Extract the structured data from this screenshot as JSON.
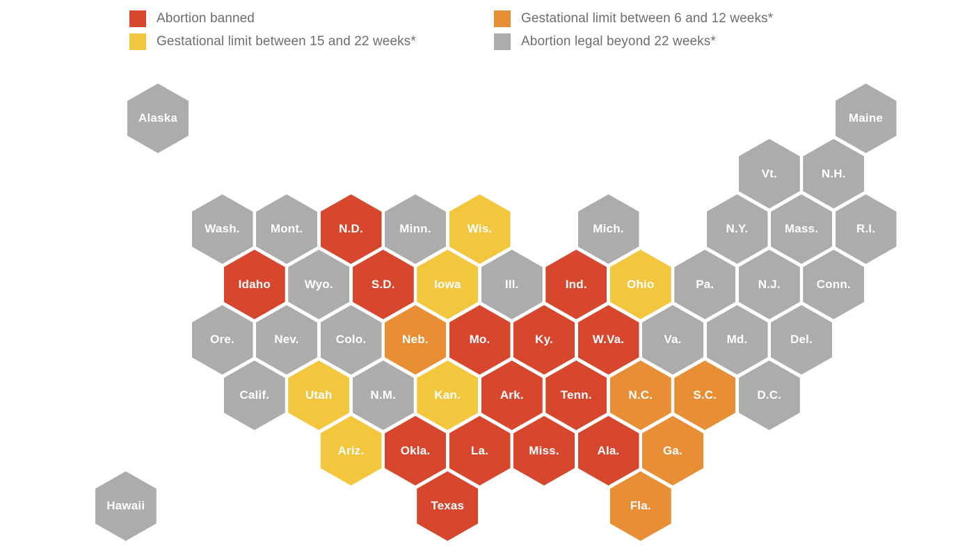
{
  "chart_data": {
    "type": "heatmap",
    "subtype": "hex-tile-cartogram-us-states",
    "legend": [
      {
        "id": "banned",
        "label": "Abortion banned",
        "color": "#D7472E"
      },
      {
        "id": "limit_6_12",
        "label": "Gestational limit between 6 and 12 weeks*",
        "color": "#E88F35"
      },
      {
        "id": "limit_15_22",
        "label": "Gestational limit between 15 and 22 weeks*",
        "color": "#F2C63D"
      },
      {
        "id": "legal",
        "label": "Abortion legal beyond 22 weeks*",
        "color": "#ACACAC"
      }
    ],
    "states": [
      {
        "label": "Alaska",
        "row": 0,
        "col": 0,
        "category": "legal"
      },
      {
        "label": "Maine",
        "row": 0,
        "col": 22,
        "category": "legal"
      },
      {
        "label": "Vt.",
        "row": 1,
        "col": 19,
        "category": "legal"
      },
      {
        "label": "N.H.",
        "row": 1,
        "col": 21,
        "category": "legal"
      },
      {
        "label": "Wash.",
        "row": 2,
        "col": 2,
        "category": "legal"
      },
      {
        "label": "Mont.",
        "row": 2,
        "col": 4,
        "category": "legal"
      },
      {
        "label": "N.D.",
        "row": 2,
        "col": 6,
        "category": "banned"
      },
      {
        "label": "Minn.",
        "row": 2,
        "col": 8,
        "category": "legal"
      },
      {
        "label": "Wis.",
        "row": 2,
        "col": 10,
        "category": "limit_15_22"
      },
      {
        "label": "Mich.",
        "row": 2,
        "col": 14,
        "category": "legal"
      },
      {
        "label": "N.Y.",
        "row": 2,
        "col": 18,
        "category": "legal"
      },
      {
        "label": "Mass.",
        "row": 2,
        "col": 20,
        "category": "legal"
      },
      {
        "label": "R.I.",
        "row": 2,
        "col": 22,
        "category": "legal"
      },
      {
        "label": "Idaho",
        "row": 3,
        "col": 3,
        "category": "banned"
      },
      {
        "label": "Wyo.",
        "row": 3,
        "col": 5,
        "category": "legal"
      },
      {
        "label": "S.D.",
        "row": 3,
        "col": 7,
        "category": "banned"
      },
      {
        "label": "Iowa",
        "row": 3,
        "col": 9,
        "category": "limit_15_22"
      },
      {
        "label": "Ill.",
        "row": 3,
        "col": 11,
        "category": "legal"
      },
      {
        "label": "Ind.",
        "row": 3,
        "col": 13,
        "category": "banned"
      },
      {
        "label": "Ohio",
        "row": 3,
        "col": 15,
        "category": "limit_15_22"
      },
      {
        "label": "Pa.",
        "row": 3,
        "col": 17,
        "category": "legal"
      },
      {
        "label": "N.J.",
        "row": 3,
        "col": 19,
        "category": "legal"
      },
      {
        "label": "Conn.",
        "row": 3,
        "col": 21,
        "category": "legal"
      },
      {
        "label": "Ore.",
        "row": 4,
        "col": 2,
        "category": "legal"
      },
      {
        "label": "Nev.",
        "row": 4,
        "col": 4,
        "category": "legal"
      },
      {
        "label": "Colo.",
        "row": 4,
        "col": 6,
        "category": "legal"
      },
      {
        "label": "Neb.",
        "row": 4,
        "col": 8,
        "category": "limit_6_12"
      },
      {
        "label": "Mo.",
        "row": 4,
        "col": 10,
        "category": "banned"
      },
      {
        "label": "Ky.",
        "row": 4,
        "col": 12,
        "category": "banned"
      },
      {
        "label": "W.Va.",
        "row": 4,
        "col": 14,
        "category": "banned"
      },
      {
        "label": "Va.",
        "row": 4,
        "col": 16,
        "category": "legal"
      },
      {
        "label": "Md.",
        "row": 4,
        "col": 18,
        "category": "legal"
      },
      {
        "label": "Del.",
        "row": 4,
        "col": 20,
        "category": "legal"
      },
      {
        "label": "Calif.",
        "row": 5,
        "col": 3,
        "category": "legal"
      },
      {
        "label": "Utah",
        "row": 5,
        "col": 5,
        "category": "limit_15_22"
      },
      {
        "label": "N.M.",
        "row": 5,
        "col": 7,
        "category": "legal"
      },
      {
        "label": "Kan.",
        "row": 5,
        "col": 9,
        "category": "limit_15_22"
      },
      {
        "label": "Ark.",
        "row": 5,
        "col": 11,
        "category": "banned"
      },
      {
        "label": "Tenn.",
        "row": 5,
        "col": 13,
        "category": "banned"
      },
      {
        "label": "N.C.",
        "row": 5,
        "col": 15,
        "category": "limit_6_12"
      },
      {
        "label": "S.C.",
        "row": 5,
        "col": 17,
        "category": "limit_6_12"
      },
      {
        "label": "D.C.",
        "row": 5,
        "col": 19,
        "category": "legal"
      },
      {
        "label": "Ariz.",
        "row": 6,
        "col": 6,
        "category": "limit_15_22"
      },
      {
        "label": "Okla.",
        "row": 6,
        "col": 8,
        "category": "banned"
      },
      {
        "label": "La.",
        "row": 6,
        "col": 10,
        "category": "banned"
      },
      {
        "label": "Miss.",
        "row": 6,
        "col": 12,
        "category": "banned"
      },
      {
        "label": "Ala.",
        "row": 6,
        "col": 14,
        "category": "banned"
      },
      {
        "label": "Ga.",
        "row": 6,
        "col": 16,
        "category": "limit_6_12"
      },
      {
        "label": "Hawaii",
        "row": 7,
        "col": -1,
        "category": "legal"
      },
      {
        "label": "Texas",
        "row": 7,
        "col": 9,
        "category": "banned"
      },
      {
        "label": "Fla.",
        "row": 7,
        "col": 15,
        "category": "limit_6_12"
      }
    ]
  }
}
